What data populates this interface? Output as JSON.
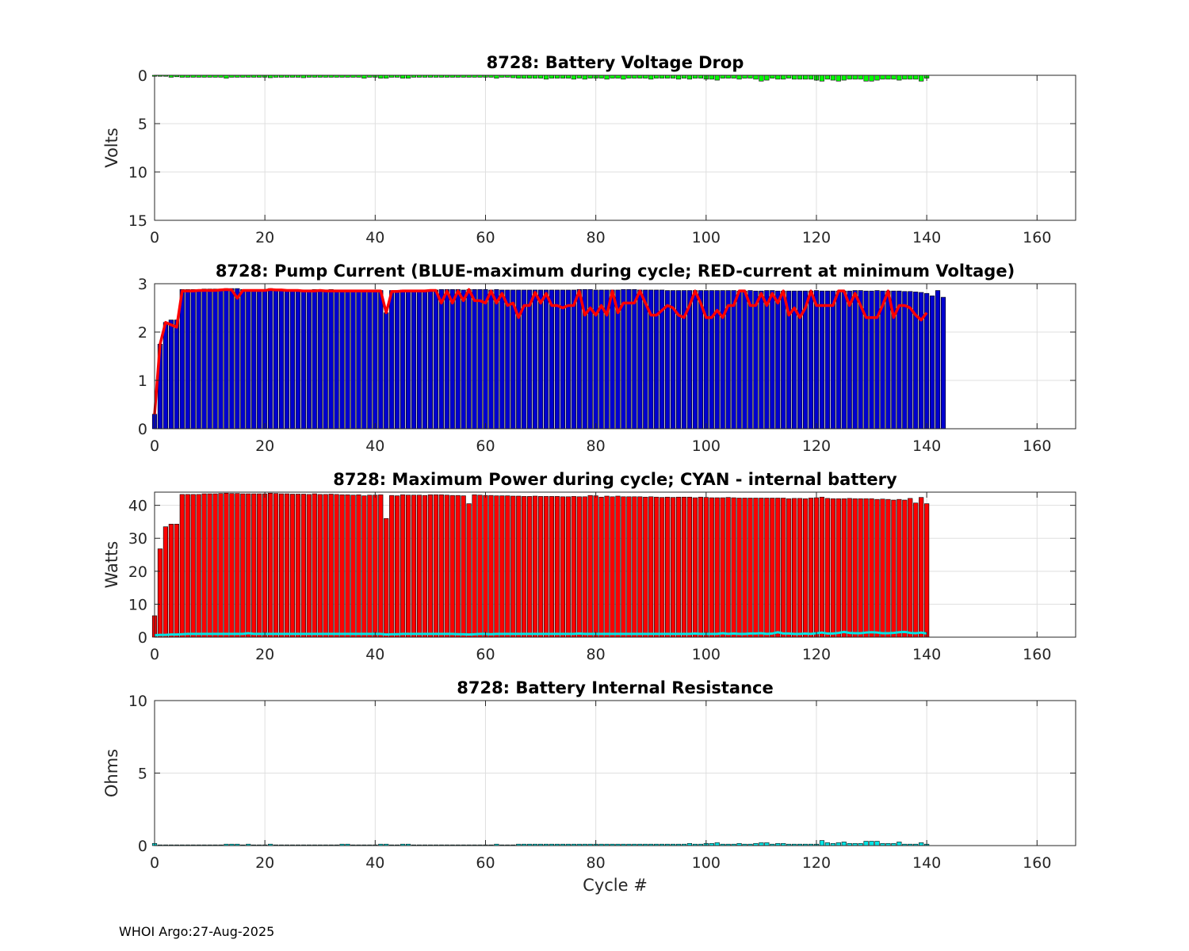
{
  "footer": "WHOI Argo:27-Aug-2025",
  "chart_data": [
    {
      "type": "bar",
      "title": "8728: Battery Voltage Drop",
      "ylabel": "Volts",
      "xlabel": "",
      "xlim": [
        0,
        167
      ],
      "ylim": [
        0,
        15
      ],
      "y_reversed": true,
      "xticks": [
        0,
        20,
        40,
        60,
        80,
        100,
        120,
        140,
        160
      ],
      "yticks": [
        0,
        5,
        10,
        15
      ],
      "grid": true,
      "bar_color": "#00ff00",
      "x_start": 0,
      "x_step": 1,
      "values": [
        0.1,
        0.1,
        0.1,
        0.2,
        0.15,
        0.2,
        0.2,
        0.2,
        0.2,
        0.2,
        0.2,
        0.2,
        0.2,
        0.3,
        0.2,
        0.2,
        0.2,
        0.2,
        0.2,
        0.2,
        0.2,
        0.25,
        0.2,
        0.2,
        0.2,
        0.2,
        0.2,
        0.25,
        0.2,
        0.2,
        0.2,
        0.2,
        0.2,
        0.2,
        0.2,
        0.2,
        0.2,
        0.2,
        0.3,
        0.2,
        0.2,
        0.3,
        0.3,
        0.2,
        0.2,
        0.3,
        0.3,
        0.2,
        0.2,
        0.2,
        0.2,
        0.2,
        0.2,
        0.2,
        0.2,
        0.2,
        0.2,
        0.2,
        0.2,
        0.2,
        0.2,
        0.2,
        0.3,
        0.2,
        0.2,
        0.25,
        0.3,
        0.3,
        0.3,
        0.3,
        0.3,
        0.4,
        0.3,
        0.3,
        0.3,
        0.3,
        0.4,
        0.3,
        0.4,
        0.3,
        0.3,
        0.3,
        0.4,
        0.3,
        0.3,
        0.4,
        0.3,
        0.3,
        0.3,
        0.3,
        0.4,
        0.3,
        0.3,
        0.3,
        0.3,
        0.4,
        0.3,
        0.4,
        0.3,
        0.3,
        0.4,
        0.4,
        0.5,
        0.3,
        0.3,
        0.3,
        0.4,
        0.3,
        0.3,
        0.4,
        0.6,
        0.5,
        0.3,
        0.4,
        0.4,
        0.3,
        0.4,
        0.4,
        0.4,
        0.4,
        0.5,
        0.6,
        0.4,
        0.5,
        0.6,
        0.5,
        0.4,
        0.4,
        0.4,
        0.6,
        0.6,
        0.5,
        0.4,
        0.4,
        0.4,
        0.5,
        0.4,
        0.4,
        0.4,
        0.6,
        0.3
      ]
    },
    {
      "type": "bar",
      "title": "8728: Pump Current (BLUE-maximum during cycle; RED-current at minimum Voltage)",
      "ylabel": "",
      "xlabel": "",
      "xlim": [
        0,
        167
      ],
      "ylim": [
        0,
        3
      ],
      "xticks": [
        0,
        20,
        40,
        60,
        80,
        100,
        120,
        140,
        160
      ],
      "yticks": [
        0,
        1,
        2,
        3
      ],
      "grid": true,
      "bar_color": "#0000d0",
      "line_color": "#ff0000",
      "x_start": 0,
      "x_step": 1,
      "series": [
        {
          "values": [
            0.3,
            1.75,
            2.2,
            2.25,
            2.25,
            2.88,
            2.88,
            2.88,
            2.88,
            2.89,
            2.89,
            2.89,
            2.89,
            2.9,
            2.9,
            2.9,
            2.88,
            2.88,
            2.88,
            2.88,
            2.88,
            2.9,
            2.88,
            2.88,
            2.88,
            2.88,
            2.88,
            2.87,
            2.87,
            2.88,
            2.87,
            2.87,
            2.88,
            2.87,
            2.86,
            2.86,
            2.86,
            2.86,
            2.85,
            2.86,
            2.86,
            2.86,
            2.4,
            2.86,
            2.86,
            2.87,
            2.87,
            2.87,
            2.87,
            2.87,
            2.87,
            2.87,
            2.88,
            2.88,
            2.88,
            2.88,
            2.87,
            2.88,
            2.88,
            2.88,
            2.88,
            2.87,
            2.88,
            2.87,
            2.87,
            2.87,
            2.87,
            2.87,
            2.87,
            2.87,
            2.87,
            2.87,
            2.87,
            2.87,
            2.87,
            2.87,
            2.87,
            2.88,
            2.88,
            2.88,
            2.87,
            2.87,
            2.87,
            2.87,
            2.87,
            2.88,
            2.88,
            2.88,
            2.87,
            2.87,
            2.87,
            2.87,
            2.87,
            2.86,
            2.86,
            2.86,
            2.86,
            2.86,
            2.86,
            2.86,
            2.86,
            2.86,
            2.86,
            2.86,
            2.86,
            2.86,
            2.85,
            2.85,
            2.86,
            2.85,
            2.85,
            2.86,
            2.86,
            2.85,
            2.85,
            2.85,
            2.85,
            2.85,
            2.85,
            2.85,
            2.86,
            2.85,
            2.85,
            2.85,
            2.85,
            2.85,
            2.85,
            2.86,
            2.86,
            2.85,
            2.85,
            2.86,
            2.85,
            2.85,
            2.85,
            2.85,
            2.84,
            2.84,
            2.83,
            2.82,
            2.8,
            2.75,
            2.86,
            2.72
          ]
        },
        {
          "values": [
            0.3,
            1.75,
            2.2,
            2.15,
            2.1,
            2.85,
            2.85,
            2.85,
            2.86,
            2.86,
            2.86,
            2.86,
            2.87,
            2.88,
            2.87,
            2.7,
            2.86,
            2.86,
            2.86,
            2.86,
            2.86,
            2.88,
            2.87,
            2.87,
            2.86,
            2.86,
            2.86,
            2.85,
            2.85,
            2.85,
            2.86,
            2.85,
            2.85,
            2.85,
            2.85,
            2.85,
            2.85,
            2.85,
            2.85,
            2.85,
            2.85,
            2.85,
            2.4,
            2.84,
            2.84,
            2.85,
            2.85,
            2.85,
            2.85,
            2.85,
            2.86,
            2.86,
            2.6,
            2.85,
            2.6,
            2.85,
            2.65,
            2.88,
            2.65,
            2.65,
            2.6,
            2.85,
            2.6,
            2.8,
            2.55,
            2.6,
            2.3,
            2.55,
            2.55,
            2.82,
            2.6,
            2.8,
            2.55,
            2.55,
            2.5,
            2.55,
            2.55,
            2.85,
            2.35,
            2.5,
            2.35,
            2.55,
            2.35,
            2.85,
            2.4,
            2.6,
            2.6,
            2.6,
            2.85,
            2.6,
            2.35,
            2.35,
            2.45,
            2.55,
            2.5,
            2.35,
            2.3,
            2.55,
            2.85,
            2.6,
            2.3,
            2.3,
            2.45,
            2.3,
            2.55,
            2.55,
            2.85,
            2.85,
            2.55,
            2.55,
            2.8,
            2.55,
            2.8,
            2.6,
            2.85,
            2.35,
            2.5,
            2.3,
            2.5,
            2.85,
            2.55,
            2.55,
            2.55,
            2.55,
            2.85,
            2.85,
            2.55,
            2.8,
            2.55,
            2.3,
            2.3,
            2.3,
            2.55,
            2.85,
            2.3,
            2.55,
            2.55,
            2.5,
            2.35,
            2.25,
            2.4
          ]
        }
      ]
    },
    {
      "type": "bar",
      "title": "8728: Maximum Power during cycle; CYAN - internal battery",
      "ylabel": "Watts",
      "xlabel": "",
      "xlim": [
        0,
        167
      ],
      "ylim": [
        0,
        44
      ],
      "xticks": [
        0,
        20,
        40,
        60,
        80,
        100,
        120,
        140,
        160
      ],
      "yticks": [
        0,
        10,
        20,
        30,
        40
      ],
      "grid": true,
      "bar_color": "#ff0000",
      "line_color": "#00e5e5",
      "x_start": 0,
      "x_step": 1,
      "series": [
        {
          "values": [
            6.5,
            26.8,
            33.5,
            34.3,
            34.3,
            43.3,
            43.3,
            43.3,
            43.3,
            43.5,
            43.5,
            43.5,
            43.6,
            43.7,
            43.6,
            43.6,
            43.5,
            43.5,
            43.5,
            43.5,
            43.5,
            43.7,
            43.6,
            43.5,
            43.5,
            43.4,
            43.4,
            43.4,
            43.3,
            43.5,
            43.3,
            43.3,
            43.4,
            43.3,
            43.2,
            43.2,
            43.1,
            43.2,
            42.9,
            43.1,
            43.1,
            43.2,
            36.0,
            43.0,
            42.9,
            43.2,
            43.1,
            43.1,
            43.1,
            43.0,
            43.2,
            43.2,
            43.2,
            43.1,
            43.0,
            43.0,
            42.9,
            40.5,
            43.2,
            43.1,
            43.0,
            43.0,
            42.9,
            42.9,
            42.9,
            42.8,
            42.8,
            42.7,
            42.7,
            42.8,
            42.7,
            42.7,
            42.7,
            42.7,
            42.6,
            42.6,
            42.7,
            42.6,
            42.6,
            43.0,
            42.9,
            42.5,
            42.8,
            42.6,
            42.8,
            42.6,
            42.6,
            42.6,
            42.6,
            42.5,
            42.6,
            42.5,
            42.4,
            42.5,
            42.4,
            42.5,
            42.5,
            42.5,
            42.3,
            42.5,
            42.4,
            42.3,
            42.3,
            42.3,
            42.4,
            42.3,
            42.2,
            42.2,
            42.2,
            42.2,
            42.2,
            42.2,
            42.2,
            42.2,
            42.2,
            42.0,
            42.1,
            42.1,
            42.0,
            42.2,
            42.3,
            42.5,
            42.1,
            42.0,
            42.0,
            42.0,
            42.1,
            42.0,
            42.0,
            42.0,
            42.0,
            41.8,
            41.9,
            41.8,
            41.6,
            41.8,
            41.6,
            42.1,
            40.7,
            42.4,
            40.5
          ]
        },
        {
          "values": [
            0.6,
            0.7,
            0.7,
            0.8,
            0.8,
            0.9,
            1.0,
            1.0,
            1.0,
            1.0,
            1.0,
            1.0,
            1.0,
            1.0,
            1.0,
            1.0,
            1.0,
            1.2,
            1.0,
            1.0,
            1.0,
            1.0,
            1.0,
            1.0,
            1.0,
            1.0,
            1.0,
            1.0,
            1.0,
            1.0,
            1.0,
            1.0,
            1.0,
            1.0,
            1.0,
            1.0,
            1.0,
            1.0,
            1.0,
            1.0,
            1.0,
            1.0,
            0.8,
            0.9,
            0.9,
            1.0,
            1.0,
            1.0,
            1.0,
            1.0,
            1.0,
            1.0,
            1.0,
            1.0,
            1.0,
            0.9,
            0.9,
            0.8,
            0.9,
            1.0,
            1.0,
            0.9,
            1.0,
            1.0,
            1.0,
            1.0,
            1.0,
            1.0,
            1.0,
            1.0,
            1.0,
            1.0,
            1.0,
            1.0,
            1.0,
            1.0,
            1.0,
            1.1,
            1.0,
            1.0,
            1.0,
            1.0,
            1.0,
            1.0,
            1.0,
            1.0,
            1.0,
            1.0,
            1.0,
            1.0,
            1.0,
            1.0,
            1.0,
            1.0,
            1.0,
            1.0,
            1.0,
            1.0,
            1.1,
            1.0,
            1.0,
            1.0,
            1.0,
            1.2,
            1.0,
            1.1,
            1.0,
            1.0,
            1.1,
            1.1,
            1.2,
            1.0,
            1.1,
            1.5,
            1.1,
            1.1,
            1.0,
            1.0,
            1.1,
            1.0,
            1.2,
            1.4,
            1.1,
            1.1,
            1.3,
            1.6,
            1.3,
            1.2,
            1.2,
            1.4,
            1.5,
            1.4,
            1.2,
            1.2,
            1.3,
            1.5,
            1.6,
            1.3,
            1.2,
            1.4,
            1.1
          ]
        }
      ]
    },
    {
      "type": "bar",
      "title": "8728: Battery Internal Resistance",
      "ylabel": "Ohms",
      "xlabel": "Cycle #",
      "xlim": [
        0,
        167
      ],
      "ylim": [
        0,
        10
      ],
      "xticks": [
        0,
        20,
        40,
        60,
        80,
        100,
        120,
        140,
        160
      ],
      "yticks": [
        0,
        5,
        10
      ],
      "grid": true,
      "bar_color": "#00e5e5",
      "x_start": 0,
      "x_step": 1,
      "values": [
        0.15,
        0.05,
        0.05,
        0.05,
        0.05,
        0.05,
        0.05,
        0.05,
        0.05,
        0.05,
        0.05,
        0.05,
        0.05,
        0.1,
        0.1,
        0.1,
        0.05,
        0.1,
        0.05,
        0.05,
        0.05,
        0.1,
        0.05,
        0.05,
        0.05,
        0.05,
        0.05,
        0.05,
        0.05,
        0.05,
        0.05,
        0.05,
        0.05,
        0.05,
        0.1,
        0.1,
        0.05,
        0.05,
        0.05,
        0.05,
        0.05,
        0.1,
        0.1,
        0.05,
        0.05,
        0.1,
        0.1,
        0.05,
        0.05,
        0.05,
        0.05,
        0.05,
        0.05,
        0.05,
        0.05,
        0.05,
        0.05,
        0.05,
        0.05,
        0.05,
        0.05,
        0.05,
        0.1,
        0.05,
        0.05,
        0.05,
        0.1,
        0.1,
        0.1,
        0.1,
        0.1,
        0.1,
        0.1,
        0.1,
        0.1,
        0.1,
        0.1,
        0.1,
        0.1,
        0.1,
        0.1,
        0.1,
        0.1,
        0.1,
        0.1,
        0.1,
        0.1,
        0.1,
        0.1,
        0.1,
        0.1,
        0.1,
        0.1,
        0.1,
        0.1,
        0.1,
        0.1,
        0.15,
        0.1,
        0.1,
        0.15,
        0.15,
        0.2,
        0.1,
        0.1,
        0.1,
        0.15,
        0.1,
        0.1,
        0.15,
        0.2,
        0.2,
        0.1,
        0.15,
        0.15,
        0.1,
        0.1,
        0.1,
        0.1,
        0.1,
        0.1,
        0.35,
        0.2,
        0.15,
        0.2,
        0.25,
        0.15,
        0.15,
        0.15,
        0.3,
        0.3,
        0.3,
        0.15,
        0.15,
        0.15,
        0.25,
        0.1,
        0.1,
        0.1,
        0.2,
        0.1
      ]
    }
  ]
}
